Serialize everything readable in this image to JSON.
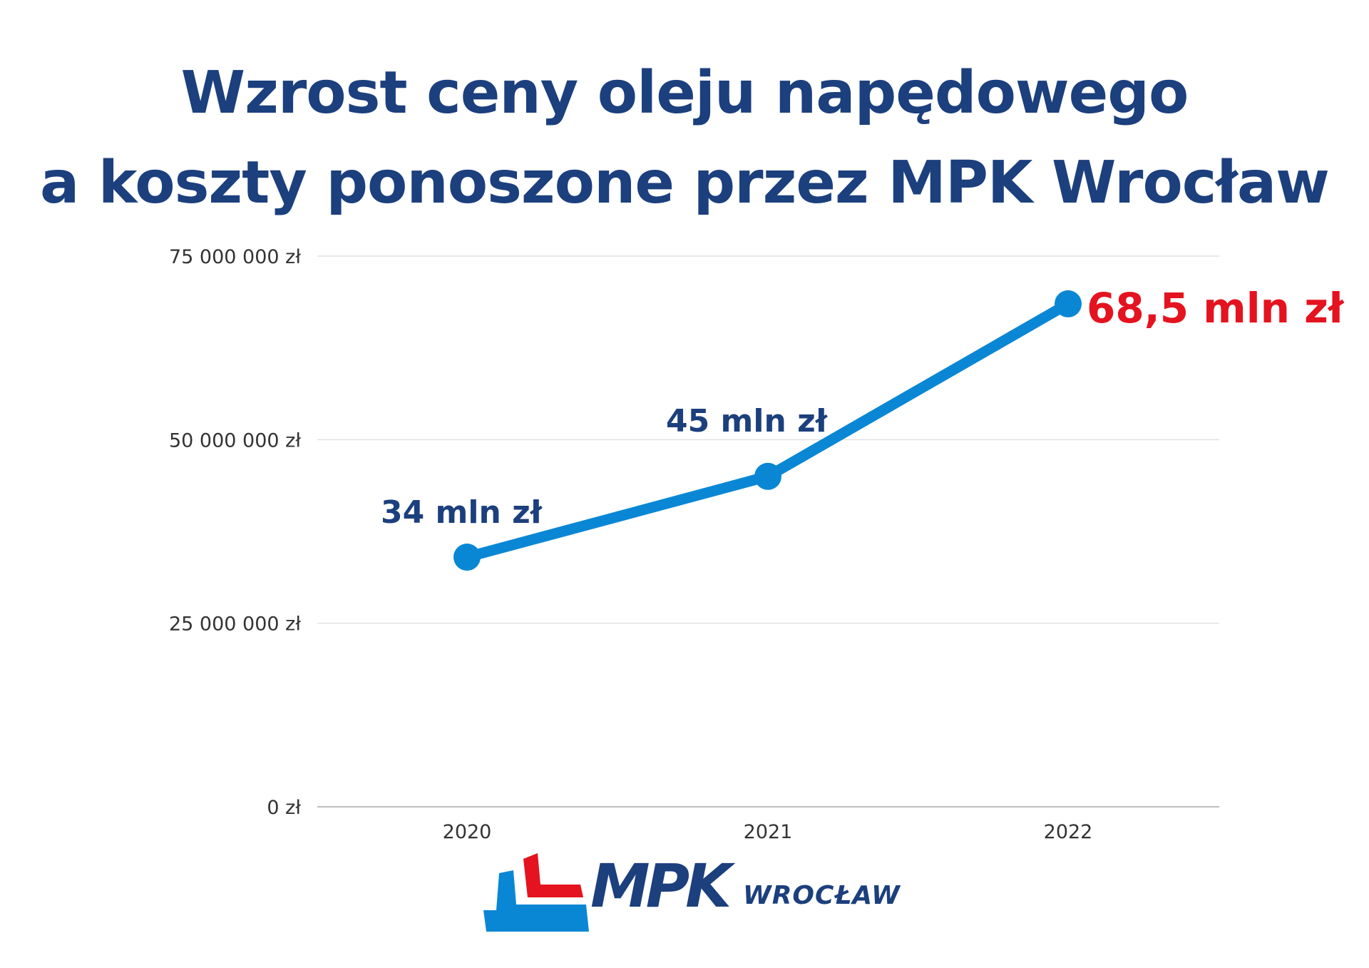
{
  "title": {
    "line1": "Wzrost ceny oleju napędowego",
    "line2": "a koszty ponoszone przez MPK Wrocław"
  },
  "colors": {
    "title": "#1c3f7d",
    "line": "#0a87d4",
    "label": "#1c3f7d",
    "highlight": "#e4131f",
    "grid": "#e2e2e2",
    "axis": "#bdbdbd"
  },
  "chart_data": {
    "type": "line",
    "title": "",
    "xlabel": "",
    "ylabel": "",
    "categories": [
      "2020",
      "2021",
      "2022"
    ],
    "values": [
      34000000,
      45000000,
      68500000
    ],
    "data_labels": [
      "34 mln zł",
      "45 mln zł",
      "68,5 mln zł"
    ],
    "highlighted_index": 2,
    "ylim": [
      0,
      75000000
    ],
    "yticks": [
      0,
      25000000,
      50000000,
      75000000
    ],
    "ytick_labels": [
      "0 zł",
      "25 000 000 zł",
      "50 000 000 zł",
      "75 000 000 zł"
    ],
    "grid": true,
    "legend": "none"
  },
  "logo": {
    "brand": "MPK",
    "city": "WROCŁAW",
    "red": "#e4131f",
    "blue": "#0a87d4",
    "text": "#1c3f7d"
  }
}
